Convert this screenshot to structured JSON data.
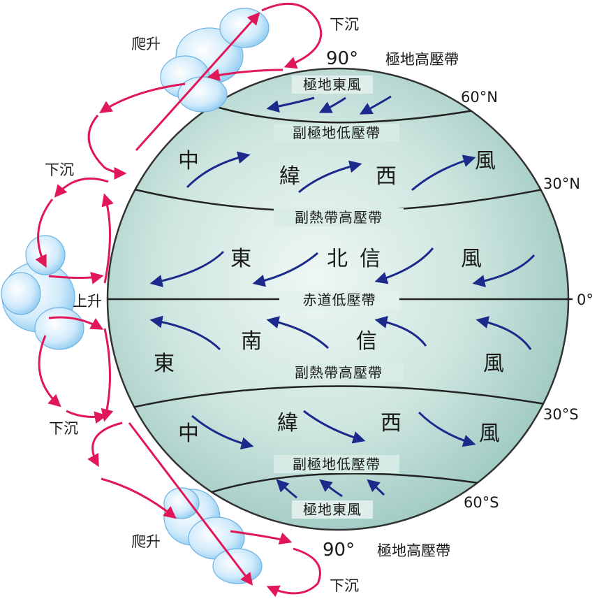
{
  "latitudes": {
    "p90_top": "90°",
    "n60": "60°N",
    "n30": "30°N",
    "eq": "0°",
    "s30": "30°S",
    "s60": "60°S",
    "p90_bottom": "90°"
  },
  "belts": {
    "polar_high_top": "極地高壓帶",
    "polar_east_north": "極地東風",
    "subpolar_low_north": "副極地低壓帶",
    "subtropical_high_north": "副熱帶高壓帶",
    "equatorial_low": "赤道低壓帶",
    "subtropical_high_south": "副熱帶高壓帶",
    "subpolar_low_south": "副極地低壓帶",
    "polar_east_south": "極地東風",
    "polar_high_bottom": "極地高壓帶"
  },
  "winds": {
    "north_westerlies": [
      "中",
      "緯",
      "西",
      "風"
    ],
    "north_trades": [
      "東",
      "北",
      "信",
      "風"
    ],
    "south_trades": [
      "東",
      "南",
      "信",
      "風"
    ],
    "south_westerlies": [
      "中",
      "緯",
      "西",
      "風"
    ]
  },
  "side_labels": {
    "rise_top": "爬升",
    "sink_top": "下沉",
    "sink_upper_left": "下沉",
    "rise_equator": "上升",
    "sink_lower_left": "下沉",
    "rise_bottom": "爬升",
    "sink_bottom": "下沉"
  },
  "colors": {
    "globe": "#cfe6e0",
    "wind_arrow": "#1c2a8c",
    "circulation_arrow": "#e0185a",
    "cloud": "#bfe3f7"
  }
}
